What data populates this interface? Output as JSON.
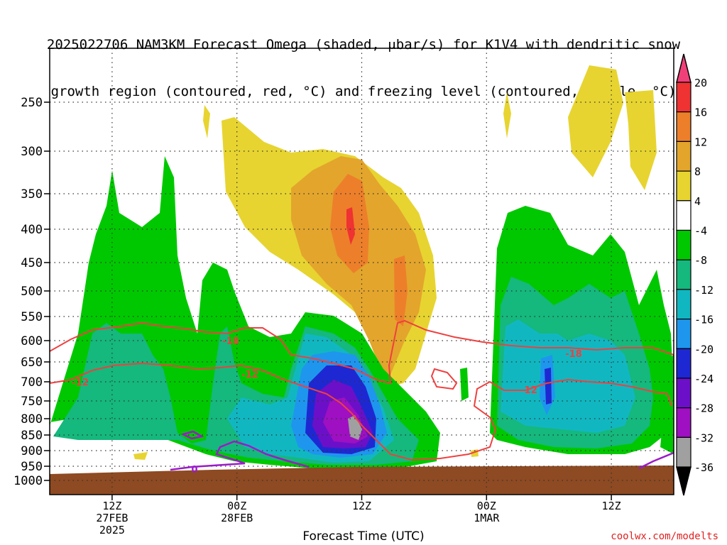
{
  "title_line1": "2025022706 NAM3KM Forecast Omega (shaded, μbar/s) for K1V4 with dendritic snow",
  "title_line2": "growth region (contoured, red, °C) and freezing level (contoured, purple, °C)",
  "credit": "coolwx.com/modelts",
  "chart_data": {
    "type": "heatmap",
    "title": "2025022706 NAM3KM Forecast Omega (shaded, μbar/s) for K1V4 with dendritic snow growth region (contoured, red, °C) and freezing level (contoured, purple, °C)",
    "xlabel": "Forecast Time (UTC)",
    "ylabel": "",
    "x_tick_labels": [
      {
        "time": "12Z",
        "date": "27FEB",
        "year": "2025",
        "hour": 6
      },
      {
        "time": "00Z",
        "date": "28FEB",
        "year": "",
        "hour": 18
      },
      {
        "time": "12Z",
        "date": "",
        "year": "",
        "hour": 30
      },
      {
        "time": "00Z",
        "date": "1MAR",
        "year": "",
        "hour": 42
      },
      {
        "time": "12Z",
        "date": "",
        "year": "",
        "hour": 54
      }
    ],
    "xlim_hours": [
      0,
      60
    ],
    "y_ticks_hPa": [
      250,
      300,
      350,
      400,
      450,
      500,
      550,
      600,
      650,
      700,
      750,
      800,
      850,
      900,
      950,
      1000
    ],
    "ylim_hPa": [
      200,
      1010
    ],
    "colorbar": {
      "levels": [
        20,
        16,
        12,
        8,
        4,
        -4,
        -8,
        -12,
        -16,
        -20,
        -24,
        -28,
        -32,
        -36
      ],
      "colors": [
        "#f0407a",
        "#ef3232",
        "#ed7f2a",
        "#e3a52c",
        "#e7d431",
        "#ffffff",
        "#00c800",
        "#15b87d",
        "#11b7c0",
        "#1e96ee",
        "#1e28d2",
        "#6b10c8",
        "#9e10c2",
        "#a0a0a0",
        "#000000"
      ]
    },
    "contours": [
      {
        "label": "-18",
        "color": "#ef4040"
      },
      {
        "label": "-12",
        "color": "#ef4040"
      },
      {
        "label": "0",
        "color": "#9a1cc8"
      }
    ],
    "grid": true,
    "ground_color": "#8e4a22"
  },
  "footer": {
    "xlabel": "Forecast Time (UTC)"
  }
}
